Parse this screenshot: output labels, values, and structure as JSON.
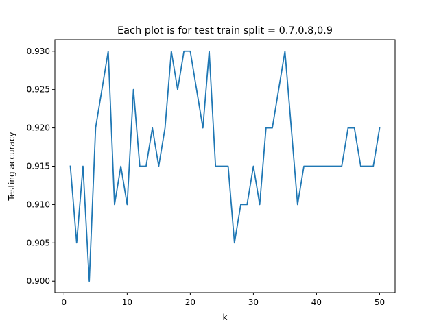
{
  "chart_data": {
    "type": "line",
    "title": "Each plot is for test train split = 0.7,0.8,0.9",
    "xlabel": "k",
    "ylabel": "Testing accuracy",
    "xlim": [
      -1.45,
      52.45
    ],
    "ylim": [
      0.8985,
      0.9315
    ],
    "xticks": [
      0,
      10,
      20,
      30,
      40,
      50
    ],
    "yticks": [
      0.9,
      0.905,
      0.91,
      0.915,
      0.92,
      0.925,
      0.93
    ],
    "xtick_labels": [
      "0",
      "10",
      "20",
      "30",
      "40",
      "50"
    ],
    "ytick_labels": [
      "0.900",
      "0.905",
      "0.910",
      "0.915",
      "0.920",
      "0.925",
      "0.930"
    ],
    "grid": false,
    "series": [
      {
        "color": "#1f77b4",
        "x": [
          1,
          2,
          3,
          4,
          5,
          6,
          7,
          8,
          9,
          10,
          11,
          12,
          13,
          14,
          15,
          16,
          17,
          18,
          19,
          20,
          21,
          22,
          23,
          24,
          25,
          26,
          27,
          28,
          29,
          30,
          31,
          32,
          33,
          34,
          35,
          36,
          37,
          38,
          39,
          40,
          41,
          42,
          43,
          44,
          45,
          46,
          47,
          48,
          49,
          50
        ],
        "y": [
          0.915,
          0.905,
          0.915,
          0.9,
          0.92,
          0.925,
          0.93,
          0.91,
          0.915,
          0.91,
          0.925,
          0.915,
          0.915,
          0.92,
          0.915,
          0.92,
          0.93,
          0.925,
          0.93,
          0.93,
          0.925,
          0.92,
          0.93,
          0.915,
          0.915,
          0.915,
          0.905,
          0.91,
          0.91,
          0.915,
          0.91,
          0.92,
          0.92,
          0.925,
          0.93,
          0.92,
          0.91,
          0.915,
          0.915,
          0.915,
          0.915,
          0.915,
          0.915,
          0.915,
          0.92,
          0.92,
          0.915,
          0.915,
          0.915,
          0.92
        ]
      }
    ]
  }
}
